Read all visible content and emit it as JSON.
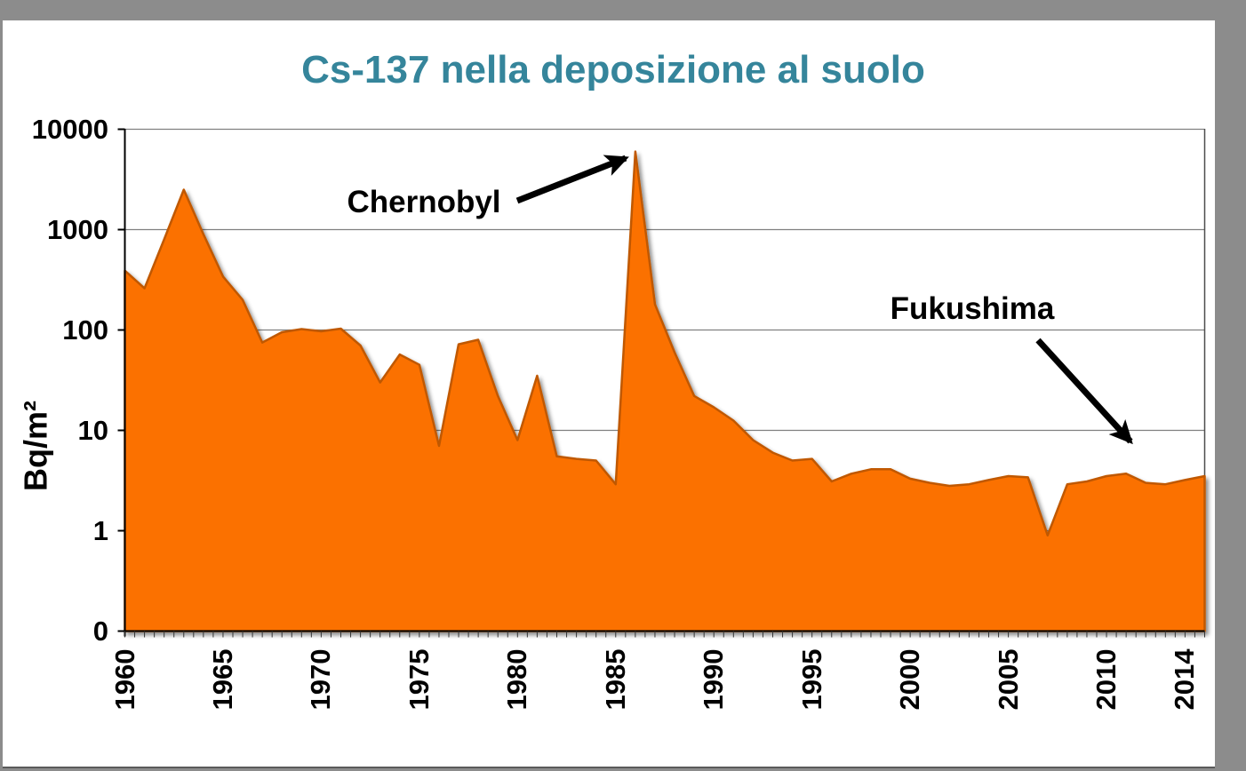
{
  "title": {
    "text": "Cs-137 nella deposizione al suolo",
    "color": "#35859B"
  },
  "y_axis": {
    "label": "Bq/m²",
    "tick_labels": [
      "10000",
      "1000",
      "100",
      "10",
      "1",
      "0"
    ]
  },
  "x_axis": {
    "tick_labels": [
      "1960",
      "1965",
      "1970",
      "1975",
      "1980",
      "1985",
      "1990",
      "1995",
      "2000",
      "2005",
      "2010",
      "2014"
    ]
  },
  "annotations": {
    "chernobyl": {
      "label": "Chernobyl"
    },
    "fukushima": {
      "label": "Fukushima"
    }
  },
  "colors": {
    "area_fill": "#FB7100",
    "area_stroke": "#C05800",
    "gridline": "#808080",
    "axis": "#000000",
    "frame_gray": "#8C8C8C",
    "title_teal": "#35859B"
  },
  "chart_data": {
    "type": "area",
    "title": "Cs-137 nella deposizione al suolo",
    "xlabel": "",
    "ylabel": "Bq/m²",
    "yscale": "log",
    "y_tick_values": [
      0,
      1,
      10,
      100,
      1000,
      10000
    ],
    "x_tick_years": [
      1960,
      1965,
      1970,
      1975,
      1980,
      1985,
      1990,
      1995,
      2000,
      2005,
      2010,
      2014
    ],
    "grid": "horizontal",
    "legend": "none",
    "x_range": [
      1960,
      2015
    ],
    "x": [
      1960,
      1961,
      1962,
      1963,
      1964,
      1965,
      1966,
      1967,
      1968,
      1969,
      1970,
      1971,
      1972,
      1973,
      1974,
      1975,
      1976,
      1977,
      1978,
      1979,
      1980,
      1981,
      1982,
      1983,
      1984,
      1985,
      1986,
      1987,
      1988,
      1989,
      1990,
      1991,
      1992,
      1993,
      1994,
      1995,
      1996,
      1997,
      1998,
      1999,
      2000,
      2001,
      2002,
      2003,
      2004,
      2005,
      2006,
      2007,
      2008,
      2009,
      2010,
      2011,
      2012,
      2013,
      2014,
      2015
    ],
    "values": [
      390,
      260,
      800,
      2500,
      900,
      340,
      200,
      75,
      95,
      102,
      97,
      103,
      70,
      30,
      57,
      45,
      7,
      72,
      80,
      22,
      8,
      35,
      5.5,
      5.2,
      5.0,
      2.9,
      6000,
      180,
      60,
      22,
      17,
      12.5,
      8,
      6,
      5.0,
      5.2,
      3.1,
      3.7,
      4.1,
      4.1,
      3.3,
      3.0,
      2.8,
      2.9,
      3.2,
      3.5,
      3.4,
      0.9,
      2.9,
      3.1,
      3.5,
      3.7,
      3.0,
      2.9,
      3.2,
      3.5
    ],
    "annotations": [
      {
        "label": "Chernobyl",
        "year": 1986,
        "value": 6000
      },
      {
        "label": "Fukushima",
        "year": 2011,
        "value": 3.7
      }
    ]
  }
}
